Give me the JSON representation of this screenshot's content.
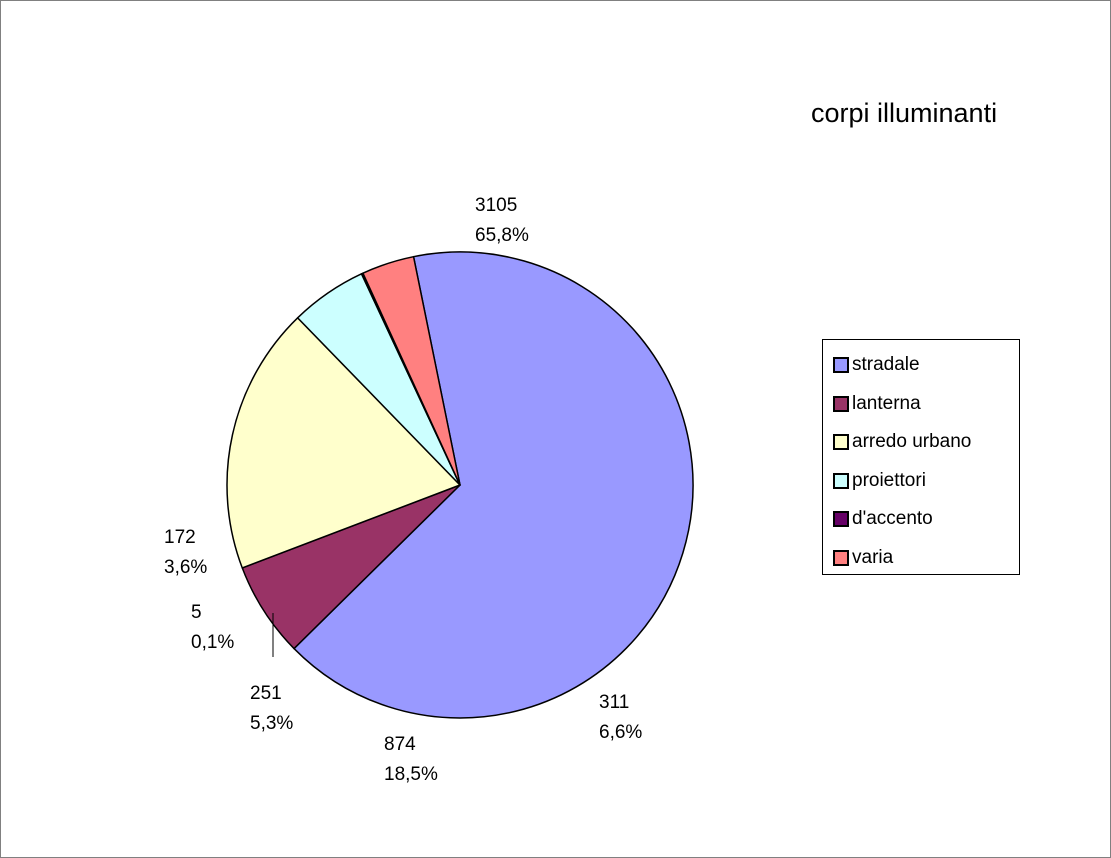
{
  "chart_data": {
    "type": "pie",
    "title": "corpi illuminanti",
    "categories": [
      "stradale",
      "lanterna",
      "arredo urbano",
      "proiettori",
      "d'accento",
      "varia"
    ],
    "values": [
      3105,
      311,
      874,
      251,
      5,
      172
    ],
    "percent_labels": [
      "65,8%",
      "6,6%",
      "18,5%",
      "5,3%",
      "0,1%",
      "3,6%"
    ],
    "value_labels": [
      "3105",
      "311",
      "874",
      "251",
      "5",
      "172"
    ],
    "colors": [
      "#9999ff",
      "#993366",
      "#ffffcc",
      "#ccffff",
      "#660066",
      "#ff8080"
    ],
    "legend_position": "right"
  }
}
